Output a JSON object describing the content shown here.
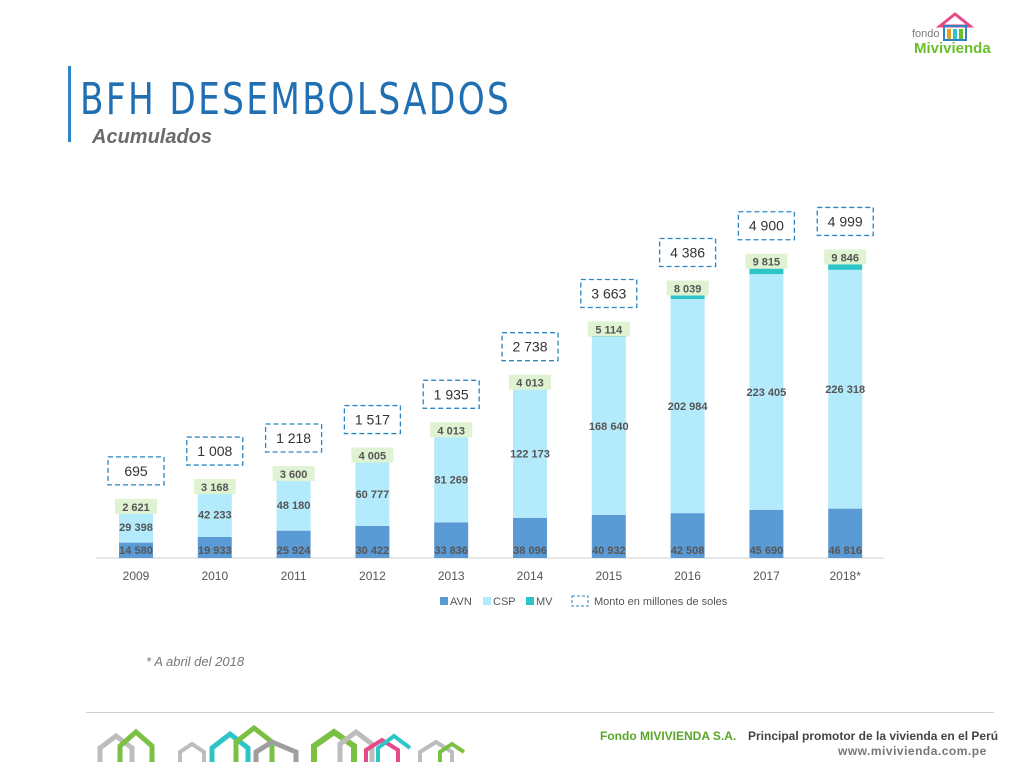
{
  "header": {
    "title": "BFH DESEMBOLSADOS",
    "subtitle": "Acumulados"
  },
  "logo": {
    "small_text": "fondo",
    "brand_text": "Mivivienda"
  },
  "footnote": "* A abril del 2018",
  "footer": {
    "company": "Fondo MIVIVIENDA S.A.",
    "tagline": "Principal promotor de la vivienda en el Perú",
    "url": "www.mivivienda.com.pe"
  },
  "colors": {
    "avn": "#5b9bd5",
    "csp": "#b3eafc",
    "mv": "#2ec5c9",
    "label_bg": "#dff3d2",
    "total_box": "#2e86c1",
    "title": "#1f6fb2"
  },
  "chart_data": {
    "type": "bar",
    "stacked": true,
    "categories": [
      "2009",
      "2010",
      "2011",
      "2012",
      "2013",
      "2014",
      "2015",
      "2016",
      "2017",
      "2018*"
    ],
    "series": [
      {
        "name": "AVN",
        "values": [
          14580,
          19933,
          25924,
          30422,
          33836,
          38096,
          40932,
          42508,
          45690,
          46816
        ],
        "labels": [
          "14 580",
          "19 933",
          "25 924",
          "30 422",
          "33 836",
          "38 096",
          "40 932",
          "42 508",
          "45 690",
          "46 816"
        ]
      },
      {
        "name": "CSP",
        "values": [
          29398,
          42233,
          48180,
          60777,
          81269,
          122173,
          168640,
          202984,
          223405,
          226318
        ],
        "labels": [
          "29 398",
          "42 233",
          "48 180",
          "60 777",
          "81 269",
          "122 173",
          "168 640",
          "202 984",
          "223 405",
          "226 318"
        ]
      },
      {
        "name": "MV",
        "values": [
          2621,
          3168,
          3600,
          4005,
          4013,
          4013,
          5114,
          8039,
          9815,
          9846
        ],
        "labels": [
          "2 621",
          "3 168",
          "3 600",
          "4 005",
          "4 013",
          "4 013",
          "5 114",
          "8 039",
          "9 815",
          "9 846"
        ]
      }
    ],
    "totals": {
      "name": "Monto en millones de soles",
      "values": [
        695,
        1008,
        1218,
        1517,
        1935,
        2738,
        3663,
        4386,
        4900,
        4999
      ],
      "labels": [
        "695",
        "1 008",
        "1 218",
        "1 517",
        "1 935",
        "2 738",
        "3 663",
        "4 386",
        "4 900",
        "4 999"
      ]
    },
    "legend_position": "bottom",
    "grid": false
  }
}
